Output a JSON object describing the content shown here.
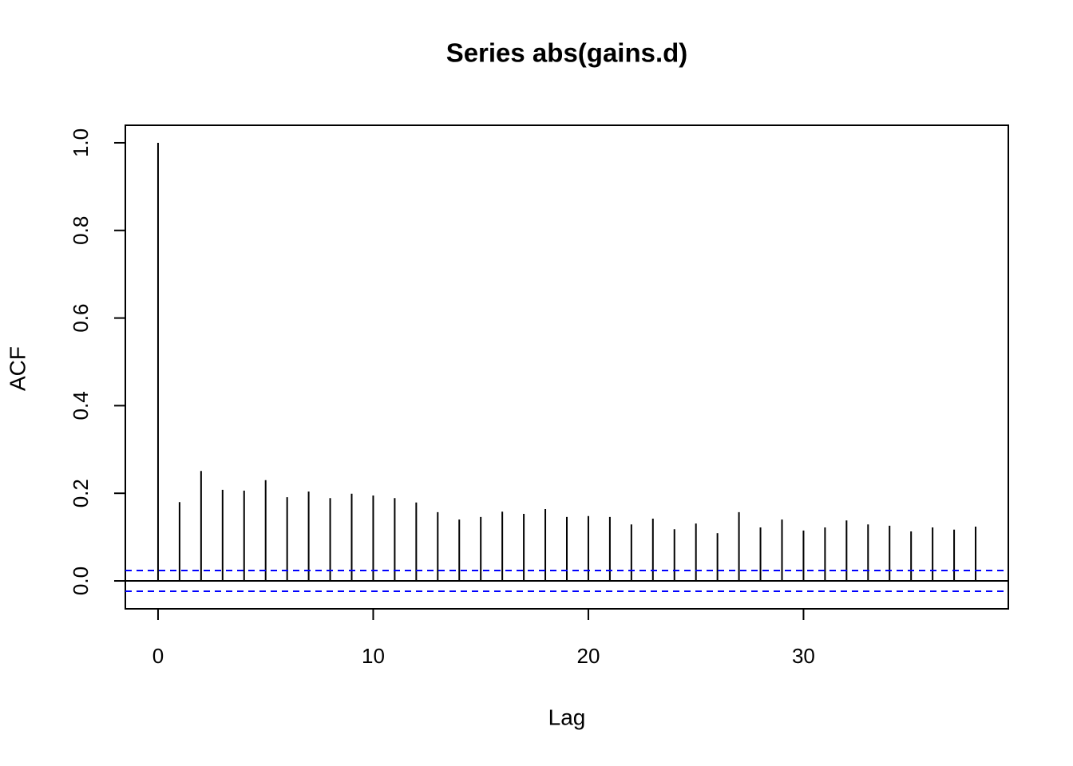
{
  "chart_data": {
    "type": "acf",
    "title": "Series  abs(gains.d)",
    "x_label": "Lag",
    "y_label": "ACF",
    "x": [
      0,
      1,
      2,
      3,
      4,
      5,
      6,
      7,
      8,
      9,
      10,
      11,
      12,
      13,
      14,
      15,
      16,
      17,
      18,
      19,
      20,
      21,
      22,
      23,
      24,
      25,
      26,
      27,
      28,
      29,
      30,
      31,
      32,
      33,
      34,
      35,
      36,
      37,
      38
    ],
    "values": [
      1.0,
      0.18,
      0.251,
      0.208,
      0.206,
      0.23,
      0.191,
      0.204,
      0.189,
      0.199,
      0.195,
      0.189,
      0.179,
      0.157,
      0.14,
      0.146,
      0.158,
      0.153,
      0.164,
      0.146,
      0.148,
      0.146,
      0.129,
      0.142,
      0.118,
      0.131,
      0.109,
      0.157,
      0.122,
      0.14,
      0.115,
      0.122,
      0.138,
      0.129,
      0.126,
      0.113,
      0.122,
      0.117,
      0.124
    ],
    "color": "#000000",
    "confidence_bounds": [
      0.0237,
      -0.0237
    ],
    "confidence_color": "#0000ff",
    "xlim": [
      -1.52,
      39.52
    ],
    "ylim": [
      -0.0637,
      1.04
    ],
    "xticks": [
      0,
      10,
      20,
      30
    ],
    "yticks": [
      {
        "value": 0,
        "label": "0.0"
      },
      0.2,
      0.4,
      0.6,
      0.8,
      {
        "value": 1,
        "label": "1.0"
      }
    ]
  }
}
